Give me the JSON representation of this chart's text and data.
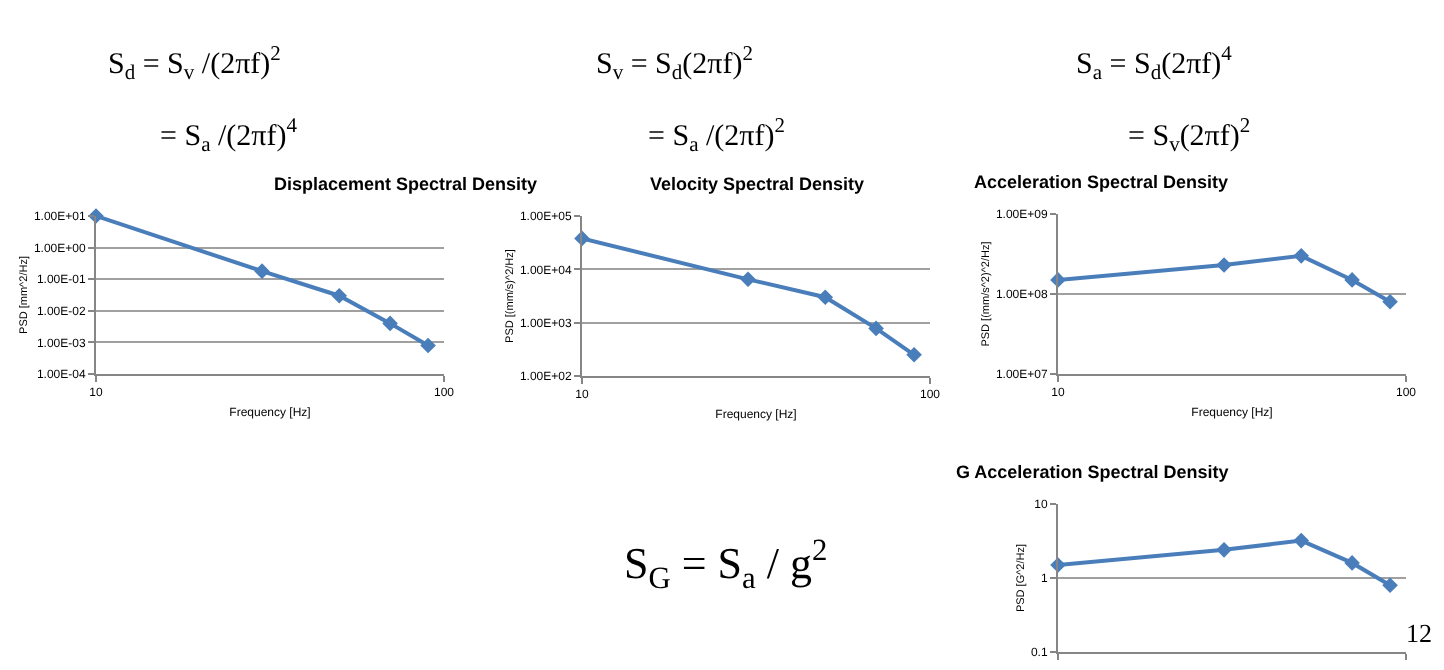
{
  "chart_data": [
    {
      "type": "line",
      "title": "Displacement Spectral Density",
      "xlabel": "Frequency [Hz]",
      "ylabel": "PSD [mm^2/Hz]",
      "log": "xy",
      "grid": "y",
      "marker": "diamond",
      "line_style": "solid",
      "x": [
        10,
        30,
        50,
        70,
        90
      ],
      "xlim": [
        10,
        100
      ],
      "xticks": [
        10,
        100
      ],
      "ylim": [
        0.0001,
        10
      ],
      "yticks": [
        {
          "value": 0.0001,
          "label": "1.00E-04"
        },
        {
          "value": 0.001,
          "label": "1.00E-03"
        },
        {
          "value": 0.01,
          "label": "1.00E-02"
        },
        {
          "value": 0.1,
          "label": "1.00E-01"
        },
        {
          "value": 1,
          "label": "1.00E+00"
        },
        {
          "value": 10,
          "label": "1.00E+01"
        }
      ],
      "series": [
        {
          "color": "#4a7ebb",
          "values": [
            10,
            0.18,
            0.03,
            0.004,
            0.0008
          ]
        }
      ]
    },
    {
      "type": "line",
      "title": "Velocity Spectral Density",
      "xlabel": "Frequency [Hz]",
      "ylabel": "PSD [(mm/s)^2/Hz]",
      "log": "xy",
      "grid": "y",
      "marker": "diamond",
      "line_style": "solid",
      "x": [
        10,
        30,
        50,
        70,
        90
      ],
      "xlim": [
        10,
        100
      ],
      "xticks": [
        10,
        100
      ],
      "ylim": [
        100,
        100000
      ],
      "yticks": [
        {
          "value": 100,
          "label": "1.00E+02"
        },
        {
          "value": 1000,
          "label": "1.00E+03"
        },
        {
          "value": 10000,
          "label": "1.00E+04"
        },
        {
          "value": 100000,
          "label": "1.00E+05"
        }
      ],
      "series": [
        {
          "color": "#4a7ebb",
          "values": [
            38000,
            6500,
            3000,
            780,
            250
          ]
        }
      ]
    },
    {
      "type": "line",
      "title": "Acceleration Spectral Density",
      "xlabel": "Frequency [Hz]",
      "ylabel": "PSD [(mm/s^2)^2/Hz]",
      "log": "xy",
      "grid": "y",
      "marker": "diamond",
      "line_style": "solid",
      "x": [
        10,
        30,
        50,
        70,
        90
      ],
      "xlim": [
        10,
        100
      ],
      "xticks": [
        10,
        100
      ],
      "ylim": [
        10000000,
        1000000000
      ],
      "yticks": [
        {
          "value": 10000000,
          "label": "1.00E+07"
        },
        {
          "value": 100000000,
          "label": "1.00E+08"
        },
        {
          "value": 1000000000,
          "label": "1.00E+09"
        }
      ],
      "series": [
        {
          "color": "#4a7ebb",
          "values": [
            150000000,
            230000000,
            300000000,
            150000000,
            80000000
          ]
        }
      ]
    },
    {
      "type": "line",
      "title": "G Acceleration Spectral Density",
      "ylabel": "PSD [G^2/Hz]",
      "log": "xy",
      "grid": "y",
      "marker": "diamond",
      "line_style": "solid",
      "tick_labels": "y",
      "x": [
        10,
        30,
        50,
        70,
        90
      ],
      "xlim": [
        10,
        100
      ],
      "ylim": [
        0.1,
        10
      ],
      "yticks": [
        0.1,
        1,
        10
      ],
      "series": [
        {
          "color": "#4a7ebb",
          "values": [
            1.5,
            2.4,
            3.2,
            1.6,
            0.8
          ]
        }
      ]
    },
    {
      "type": "other",
      "annotations": [
        "S$_{d}$ = S$_{v}$ /(2πf)$^{2}$",
        "= S$_{a}$ /(2πf)$^{4}$",
        "S$_{v}$ = S$_{d}$(2πf)$^{2}$",
        "= S$_{a}$ /(2πf)$^{2}$",
        "S$_{a}$ = S$_{d}$(2πf)$^{4}$",
        "= S$_{v}$(2πf)$^{2}$",
        "S$_{G}$ = S$_{a}$ / g$^{2}$",
        "12"
      ]
    }
  ]
}
